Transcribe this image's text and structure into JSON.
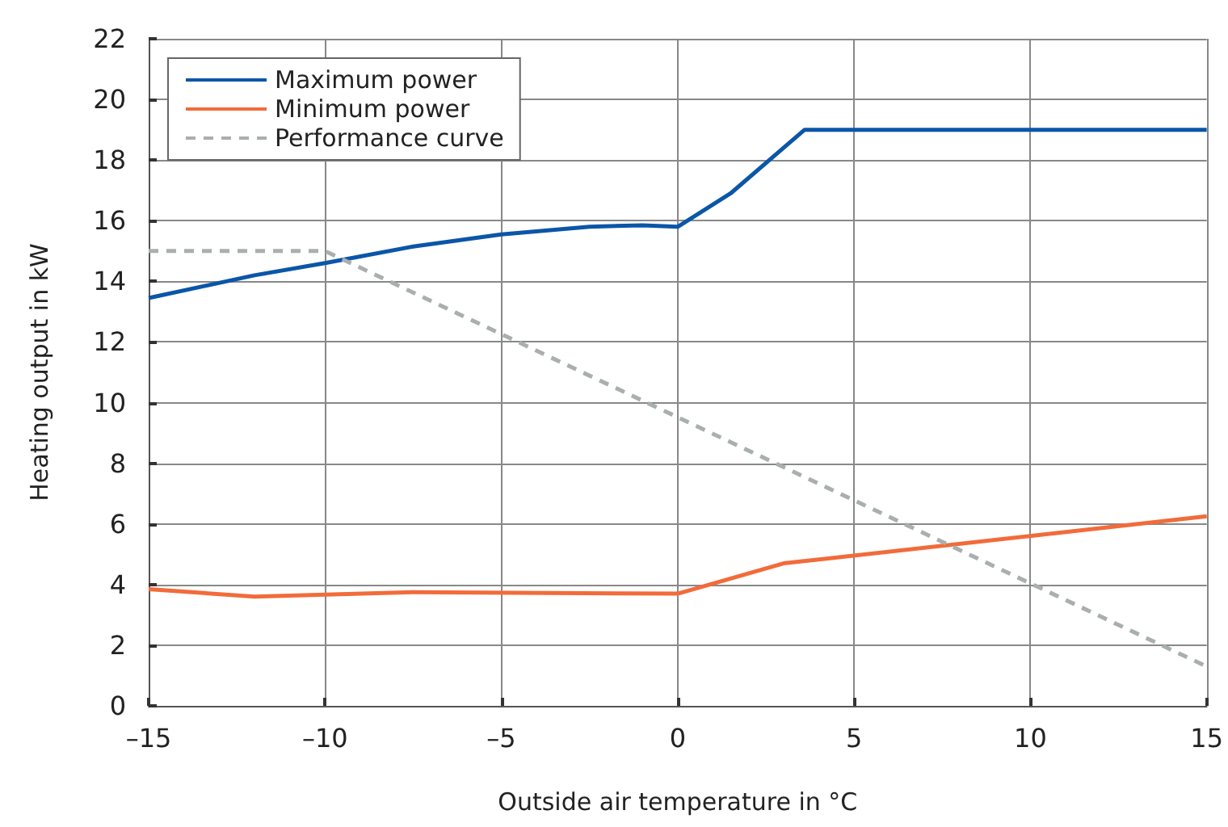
{
  "chart_data": {
    "type": "line",
    "xlabel": "Outside air temperature in °C",
    "ylabel": "Heating output in kW",
    "xlim": [
      -15,
      15
    ],
    "xticks": [
      {
        "value": -15,
        "label": "–15"
      },
      {
        "value": -10,
        "label": "–10"
      },
      {
        "value": -5,
        "label": "–5"
      },
      0,
      5,
      10,
      15
    ],
    "ylim": [
      0,
      22
    ],
    "yticks": [
      0,
      2,
      4,
      6,
      8,
      10,
      12,
      14,
      16,
      18,
      20,
      22
    ],
    "grid": true,
    "legend": "top left",
    "marker": "none",
    "series": [
      {
        "name": "Maximum power",
        "color": "#0a56a8",
        "x": [
          -15,
          -12,
          -10,
          -7.5,
          -5,
          -2.5,
          -1,
          0,
          1.5,
          3,
          3.6,
          15
        ],
        "values": [
          13.45,
          14.2,
          14.6,
          15.15,
          15.55,
          15.8,
          15.85,
          15.8,
          16.9,
          18.4,
          19,
          19
        ]
      },
      {
        "name": "Minimum power",
        "color": "#f26b3a",
        "x": [
          -15,
          -12,
          -7.5,
          0,
          3,
          15
        ],
        "values": [
          3.85,
          3.6,
          3.75,
          3.7,
          4.7,
          6.25
        ]
      },
      {
        "name": "Performance curve",
        "color": "#a9aeae",
        "line_style": "dashed",
        "x": [
          -15,
          -10,
          15
        ],
        "values": [
          15,
          15,
          1.3
        ]
      }
    ]
  }
}
